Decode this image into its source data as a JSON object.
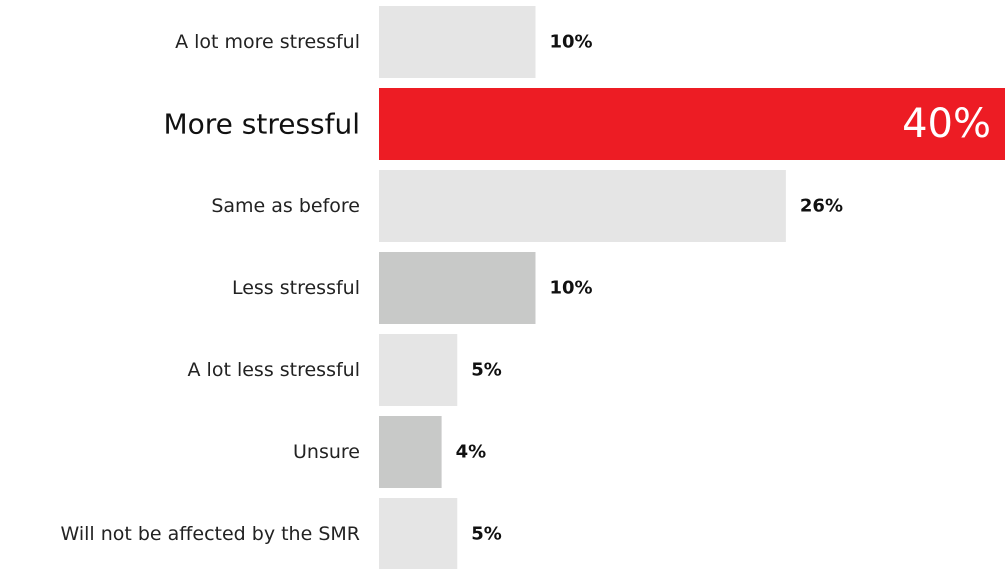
{
  "chart_data": {
    "type": "bar",
    "orientation": "horizontal",
    "title": "",
    "xlabel": "",
    "ylabel": "",
    "xlim": [
      0,
      40
    ],
    "grid": false,
    "legend": "none",
    "categories": [
      "A lot more stressful",
      "More stressful",
      "Same as before",
      "Less stressful",
      "A lot less stressful",
      "Unsure",
      "Will not be affected by the SMR"
    ],
    "values": [
      10,
      40,
      26,
      10,
      5,
      4,
      5
    ],
    "value_labels": [
      "10%",
      "40%",
      "26%",
      "10%",
      "5%",
      "4%",
      "5%"
    ],
    "highlight_index": 1,
    "bar_colors": [
      "#e5e5e5",
      "#ed1c24",
      "#e5e5e5",
      "#c8c9c8",
      "#e5e5e5",
      "#c8c9c8",
      "#e5e5e5"
    ]
  }
}
